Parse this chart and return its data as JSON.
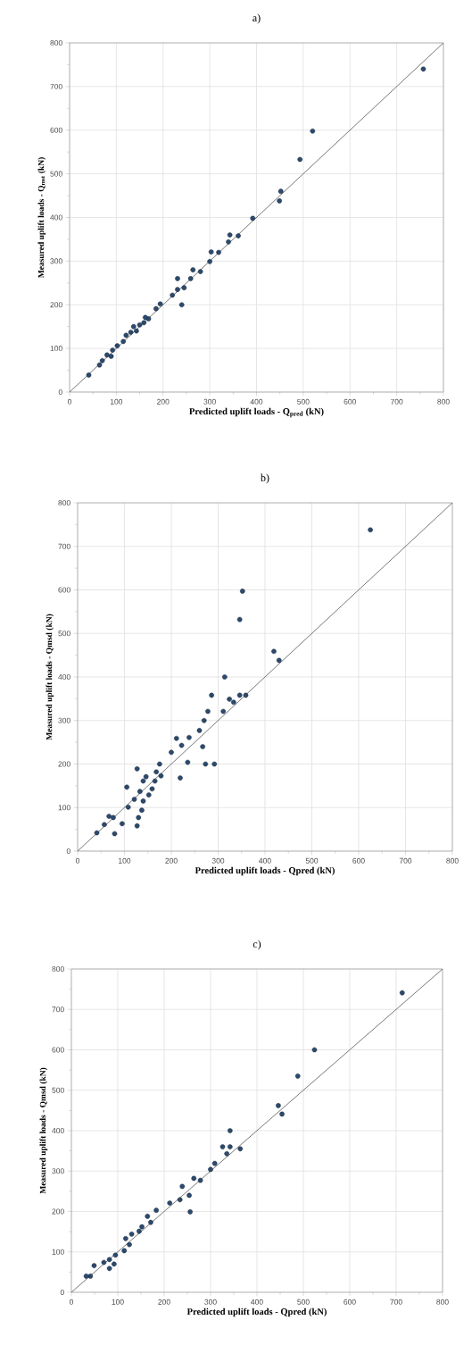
{
  "chart_data": [
    {
      "type": "scatter",
      "title": "a)",
      "xlabel": "Predicted uplift loads - Q$_{pred}$ (kN)",
      "ylabel": "Measured uplift loads - Q$_{mst}$ (kN)",
      "xlim": [
        0,
        800
      ],
      "ylim": [
        0,
        800
      ],
      "xticks": [
        0,
        100,
        200,
        300,
        400,
        500,
        600,
        700,
        800
      ],
      "yticks": [
        0,
        100,
        200,
        300,
        400,
        500,
        600,
        700,
        800
      ],
      "grid": true,
      "series": [
        {
          "marker": "circle",
          "color": "#2c4a6e",
          "x": [
            757,
            520,
            493,
            452,
            449,
            392,
            361,
            343,
            340,
            319,
            303,
            300,
            280,
            264,
            259,
            231,
            245,
            231,
            220,
            240,
            194,
            185,
            169,
            159,
            150,
            137,
            131,
            121,
            115,
            102,
            92,
            89,
            80,
            70,
            64,
            41,
            143,
            162
          ],
          "values": [
            740,
            598,
            533,
            460,
            438,
            398,
            358,
            360,
            344,
            320,
            321,
            299,
            276,
            280,
            260,
            260,
            239,
            235,
            222,
            200,
            202,
            191,
            168,
            159,
            154,
            150,
            137,
            130,
            116,
            106,
            96,
            82,
            85,
            72,
            62,
            39,
            140,
            171
          ]
        },
        {
          "type": "line",
          "marker": "none",
          "color": "#555555",
          "x": [
            0,
            800
          ],
          "values": [
            0,
            800
          ]
        }
      ]
    },
    {
      "type": "scatter",
      "title": "b)",
      "xlabel": "Predicted uplift loads - Qpred (kN)",
      "ylabel": "Measured uplift loads - Qmsd (kN)",
      "xlim": [
        0,
        800
      ],
      "ylim": [
        0,
        800
      ],
      "xticks": [
        0,
        100,
        200,
        300,
        400,
        500,
        600,
        700,
        800
      ],
      "yticks": [
        0,
        100,
        200,
        300,
        400,
        500,
        600,
        700,
        800
      ],
      "grid": true,
      "series": [
        {
          "marker": "circle",
          "color": "#2c4a6e",
          "x": [
            625,
            352,
            346,
            419,
            430,
            314,
            286,
            278,
            311,
            333,
            346,
            359,
            324,
            270,
            260,
            267,
            273,
            292,
            238,
            211,
            222,
            200,
            235,
            219,
            175,
            178,
            165,
            146,
            127,
            105,
            133,
            152,
            140,
            121,
            108,
            137,
            130,
            127,
            95,
            76,
            67,
            57,
            79,
            41,
            159,
            168,
            140
          ],
          "values": [
            738,
            597,
            532,
            459,
            438,
            400,
            358,
            321,
            321,
            342,
            358,
            358,
            349,
            300,
            277,
            240,
            200,
            200,
            261,
            259,
            243,
            227,
            204,
            168,
            200,
            173,
            161,
            171,
            189,
            147,
            137,
            129,
            115,
            119,
            101,
            94,
            77,
            58,
            63,
            77,
            80,
            61,
            40,
            42,
            143,
            182,
            161
          ]
        },
        {
          "type": "line",
          "marker": "none",
          "color": "#555555",
          "x": [
            0,
            800
          ],
          "values": [
            0,
            800
          ]
        }
      ]
    },
    {
      "type": "scatter",
      "title": "c)",
      "xlabel": "Predicted uplift loads - Qpred (kN)",
      "ylabel": "Measured uplift loads - Qmsd (kN)",
      "xlim": [
        0,
        800
      ],
      "ylim": [
        0,
        800
      ],
      "xticks": [
        0,
        100,
        200,
        300,
        400,
        500,
        600,
        700,
        800
      ],
      "yticks": [
        0,
        100,
        200,
        300,
        400,
        500,
        600,
        700,
        800
      ],
      "grid": true,
      "series": [
        {
          "marker": "circle",
          "color": "#2c4a6e",
          "x": [
            713,
            524,
            488,
            446,
            454,
            342,
            326,
            342,
            364,
            335,
            309,
            300,
            278,
            264,
            239,
            254,
            234,
            256,
            212,
            183,
            164,
            171,
            152,
            130,
            117,
            125,
            114,
            95,
            82,
            70,
            82,
            49,
            41,
            32,
            146,
            92
          ],
          "values": [
            741,
            600,
            535,
            462,
            441,
            400,
            360,
            360,
            355,
            343,
            319,
            304,
            277,
            282,
            262,
            240,
            229,
            199,
            221,
            203,
            188,
            173,
            162,
            144,
            133,
            118,
            103,
            92,
            81,
            74,
            59,
            66,
            40,
            40,
            151,
            70
          ]
        },
        {
          "type": "line",
          "marker": "none",
          "color": "#555555",
          "x": [
            0,
            800
          ],
          "values": [
            0,
            800
          ]
        }
      ]
    }
  ]
}
